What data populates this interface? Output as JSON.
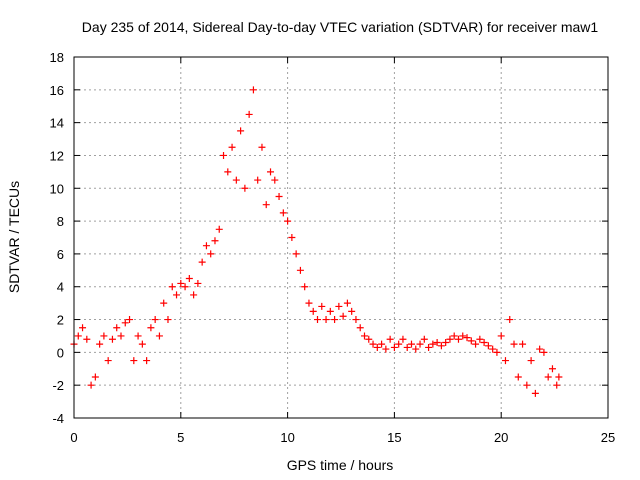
{
  "chart_data": {
    "type": "scatter",
    "title": "Day 235 of 2014, Sidereal Day-to-day VTEC variation (SDTVAR) for receiver maw1",
    "xlabel": "GPS time / hours",
    "ylabel": "SDTVAR / TECUs",
    "xlim": [
      0,
      25
    ],
    "ylim": [
      -4,
      18
    ],
    "xticks": [
      "0",
      "5",
      "10",
      "15",
      "20",
      "25"
    ],
    "yticks": [
      "-4",
      "-2",
      "0",
      "2",
      "4",
      "6",
      "8",
      "10",
      "12",
      "14",
      "16",
      "18"
    ],
    "grid": true,
    "marker": "+",
    "color": "#ff0000",
    "series": [
      {
        "name": "SDTVAR",
        "x": [
          0.0,
          0.2,
          0.4,
          0.6,
          0.8,
          1.0,
          1.2,
          1.4,
          1.6,
          1.8,
          2.0,
          2.2,
          2.4,
          2.6,
          2.8,
          3.0,
          3.2,
          3.4,
          3.6,
          3.8,
          4.0,
          4.2,
          4.4,
          4.6,
          4.8,
          5.0,
          5.2,
          5.4,
          5.6,
          5.8,
          6.0,
          6.2,
          6.4,
          6.6,
          6.8,
          7.0,
          7.2,
          7.4,
          7.6,
          7.8,
          8.0,
          8.2,
          8.4,
          8.6,
          8.8,
          9.0,
          9.2,
          9.4,
          9.6,
          9.8,
          10.0,
          10.2,
          10.4,
          10.6,
          10.8,
          11.0,
          11.2,
          11.4,
          11.6,
          11.8,
          12.0,
          12.2,
          12.4,
          12.6,
          12.8,
          13.0,
          13.2,
          13.4,
          13.6,
          13.8,
          14.0,
          14.2,
          14.4,
          14.6,
          14.8,
          15.0,
          15.2,
          15.4,
          15.6,
          15.8,
          16.0,
          16.2,
          16.4,
          16.6,
          16.8,
          17.0,
          17.2,
          17.4,
          17.6,
          17.8,
          18.0,
          18.2,
          18.4,
          18.6,
          18.8,
          19.0,
          19.2,
          19.4,
          19.6,
          19.8,
          20.0,
          20.2,
          20.4,
          20.6,
          20.8,
          21.0,
          21.2,
          21.4,
          21.6,
          21.8,
          22.0,
          22.2,
          22.4,
          22.6,
          22.7
        ],
        "y": [
          0.5,
          1.0,
          1.5,
          0.8,
          -2.0,
          -1.5,
          0.5,
          1.0,
          -0.5,
          0.8,
          1.5,
          1.0,
          1.8,
          2.0,
          -0.5,
          1.0,
          0.5,
          -0.5,
          1.5,
          2.0,
          1.0,
          3.0,
          2.0,
          4.0,
          3.5,
          4.2,
          4.0,
          4.5,
          3.5,
          4.2,
          5.5,
          6.5,
          6.0,
          6.8,
          7.5,
          12.0,
          11.0,
          12.5,
          10.5,
          13.5,
          10.0,
          14.5,
          16.0,
          10.5,
          12.5,
          9.0,
          11.0,
          10.5,
          9.5,
          8.5,
          8.0,
          7.0,
          6.0,
          5.0,
          4.0,
          3.0,
          2.5,
          2.0,
          2.8,
          2.0,
          2.5,
          2.0,
          2.8,
          2.2,
          3.0,
          2.5,
          2.0,
          1.5,
          1.0,
          0.8,
          0.5,
          0.3,
          0.5,
          0.2,
          0.8,
          0.3,
          0.5,
          0.8,
          0.3,
          0.5,
          0.2,
          0.5,
          0.8,
          0.3,
          0.5,
          0.6,
          0.4,
          0.6,
          0.8,
          1.0,
          0.8,
          1.0,
          0.9,
          0.7,
          0.5,
          0.8,
          0.6,
          0.4,
          0.2,
          0.0,
          1.0,
          -0.5,
          2.0,
          0.5,
          -1.5,
          0.5,
          -2.0,
          -0.5,
          -2.5,
          0.2,
          0.0,
          -1.5,
          -1.0,
          -2.0,
          -1.5
        ]
      }
    ]
  }
}
